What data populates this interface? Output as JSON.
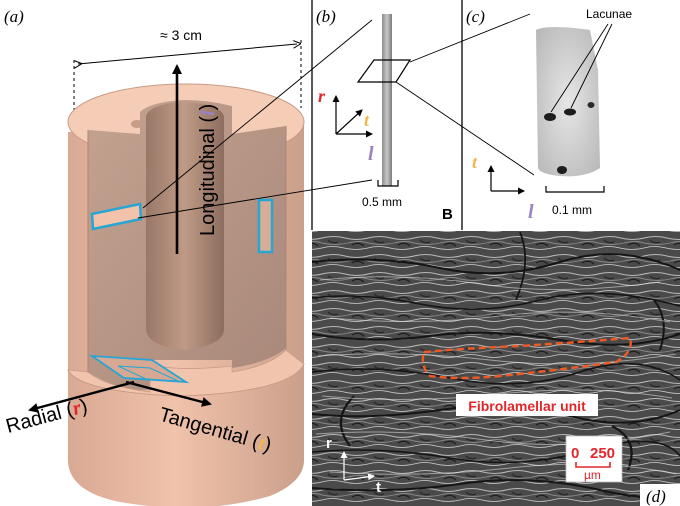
{
  "panel_a": {
    "label": "(a)",
    "width_label": "≈ 3 cm",
    "axis_longitudinal": {
      "word": "Longitudinal (",
      "letter": "l",
      "close": ")"
    },
    "axis_radial": {
      "word": "Radial (",
      "letter": "r",
      "close": ")"
    },
    "axis_tangential": {
      "word": "Tangential (",
      "letter": "t",
      "close": ")"
    }
  },
  "panel_b": {
    "label": "(b)",
    "axis_r": "r",
    "axis_t": "t",
    "axis_l": "l",
    "scale_label": "0.5 mm",
    "corner_label": "B"
  },
  "panel_c": {
    "label": "(c)",
    "callout": "Lacunae",
    "axis_t": "t",
    "axis_l": "l",
    "scale_label": "0.1 mm"
  },
  "panel_d": {
    "label": "(d)",
    "unit_label": "Fibrolamellar unit",
    "scale_start": "0",
    "scale_end": "250",
    "scale_unit": "µm",
    "axis_r": "r",
    "axis_t": "t"
  },
  "colors": {
    "bone": "#e9b79f",
    "bone_top": "#f3c8b2",
    "bone_shadow": "#b98d78",
    "radial_red": "#e3262b",
    "tangential_orange": "#f2b64a",
    "longitudinal_purple": "#9b82c0",
    "cyan": "#27a6d6",
    "dash_orange": "#f05a22"
  }
}
